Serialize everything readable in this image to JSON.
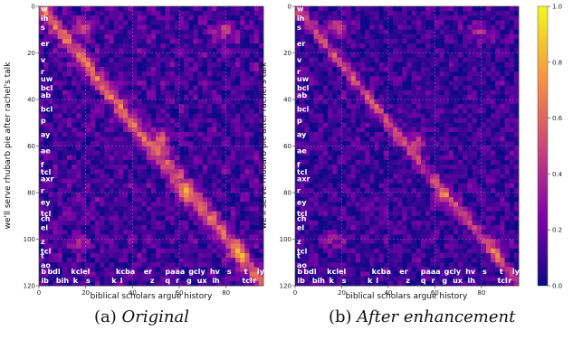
{
  "chart_data": [
    {
      "type": "heatmap",
      "xlabel": "biblical scholars argue history",
      "ylabel": "we'll serve rhubarb pie after rachel's talk",
      "xlim": [
        0,
        96
      ],
      "ylim": [
        0,
        120
      ],
      "x_ticks": [
        "0",
        "20",
        "40",
        "60",
        "80"
      ],
      "y_ticks": [
        "0",
        "20",
        "40",
        "60",
        "80",
        "100",
        "120"
      ],
      "grid": true,
      "y_phonemes": [
        {
          "label": "w",
          "pos": 1
        },
        {
          "label": "ih",
          "pos": 5
        },
        {
          "label": "s",
          "pos": 9
        },
        {
          "label": "er",
          "pos": 16
        },
        {
          "label": "v",
          "pos": 23
        },
        {
          "label": "r",
          "pos": 28
        },
        {
          "label": "uw",
          "pos": 31
        },
        {
          "label": "bcl",
          "pos": 35
        },
        {
          "label": "ab",
          "pos": 38
        },
        {
          "label": "bcl",
          "pos": 44
        },
        {
          "label": "p",
          "pos": 49
        },
        {
          "label": "ay",
          "pos": 55
        },
        {
          "label": "ae",
          "pos": 62
        },
        {
          "label": "f",
          "pos": 68
        },
        {
          "label": "tcl",
          "pos": 71
        },
        {
          "label": "axr",
          "pos": 74
        },
        {
          "label": "r",
          "pos": 79
        },
        {
          "label": "ey",
          "pos": 84
        },
        {
          "label": "tcl",
          "pos": 89
        },
        {
          "label": "ch",
          "pos": 91
        },
        {
          "label": "el",
          "pos": 95
        },
        {
          "label": "z",
          "pos": 101
        },
        {
          "label": "tcl",
          "pos": 105
        },
        {
          "label": "t",
          "pos": 107
        },
        {
          "label": "ao",
          "pos": 111
        }
      ],
      "x_phonemes_top": [
        {
          "label": "b",
          "pos": 1
        },
        {
          "label": "bdl",
          "pos": 4
        },
        {
          "label": "kclel",
          "pos": 15
        },
        {
          "label": "kcba",
          "pos": 36
        },
        {
          "label": "er",
          "pos": 49
        },
        {
          "label": "paaa",
          "pos": 59
        },
        {
          "label": "gcly",
          "pos": 70
        },
        {
          "label": "hv",
          "pos": 80
        },
        {
          "label": "s",
          "pos": 88
        },
        {
          "label": "t",
          "pos": 96
        },
        {
          "label": "iy",
          "pos": 102
        }
      ],
      "x_phonemes_bottom": [
        {
          "label": "ib",
          "pos": 1
        },
        {
          "label": "bih",
          "pos": 8
        },
        {
          "label": "k",
          "pos": 16
        },
        {
          "label": "s",
          "pos": 22
        },
        {
          "label": "k",
          "pos": 34
        },
        {
          "label": "l",
          "pos": 38
        },
        {
          "label": "z",
          "pos": 52
        },
        {
          "label": "q",
          "pos": 59
        },
        {
          "label": "r",
          "pos": 64
        },
        {
          "label": "g",
          "pos": 69
        },
        {
          "label": "ux",
          "pos": 74
        },
        {
          "label": "ih",
          "pos": 81
        },
        {
          "label": "tcl",
          "pos": 95
        },
        {
          "label": "r",
          "pos": 100
        }
      ]
    },
    {
      "type": "heatmap",
      "xlabel": "biblical scholars argue history",
      "ylabel": "we'll serve rhubarb pie after rachel's talk",
      "xlim": [
        0,
        96
      ],
      "ylim": [
        0,
        120
      ],
      "x_ticks": [
        "0",
        "20",
        "40",
        "60",
        "80"
      ],
      "y_ticks": [
        "0",
        "20",
        "40",
        "60",
        "80",
        "100",
        "120"
      ],
      "grid": true
    }
  ],
  "colorbar": {
    "colormap": "plasma",
    "min": 0.0,
    "max": 1.0,
    "ticks": [
      "0.0",
      "0.2",
      "0.4",
      "0.6",
      "0.8",
      "1.0"
    ]
  },
  "captions": {
    "left_prefix": "(a) ",
    "left": "Original",
    "right_prefix": "(b) ",
    "right": "After enhancement"
  }
}
